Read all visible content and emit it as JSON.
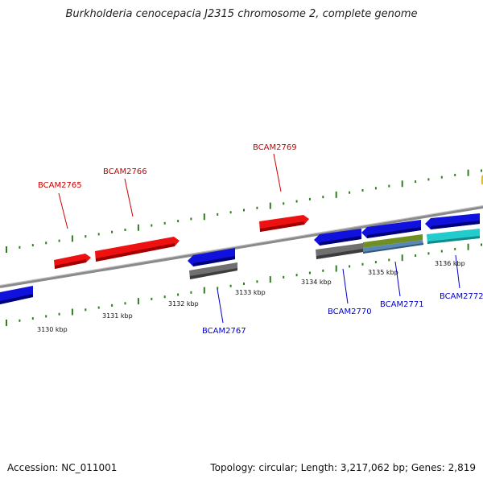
{
  "title": "Burkholderia cenocepacia J2315 chromosome 2, complete genome",
  "accession_text": "Accession: NC_011001",
  "summary_text": "Topology: circular; Length: 3,217,062 bp; Genes: 2,819",
  "tick_labels": [
    "3130 kbp",
    "3131 kbp",
    "3132 kbp",
    "3133 kbp",
    "3134 kbp",
    "3135 kbp",
    "3136 kbp"
  ],
  "genes": [
    {
      "name": "BCAM2765",
      "strand": "forward",
      "color": "#cc0000"
    },
    {
      "name": "BCAM2766",
      "strand": "forward",
      "color": "#cc0000"
    },
    {
      "name": "BCAM2767",
      "strand": "reverse",
      "color": "#0000cc"
    },
    {
      "name": "BCAM2769",
      "strand": "forward",
      "color": "#cc0000"
    },
    {
      "name": "BCAM2770",
      "strand": "reverse",
      "color": "#0000cc"
    },
    {
      "name": "BCAM2771",
      "strand": "reverse",
      "color": "#0000cc"
    },
    {
      "name": "BCAM2772",
      "strand": "reverse",
      "color": "#0000cc"
    }
  ],
  "colors": {
    "backbone": "#8a8a8a",
    "forward_gene": "#ee1111",
    "reverse_gene": "#1111dd",
    "tick": "#2e7d1f",
    "feature_grey": "#707070",
    "feature_olive": "#6f8f23",
    "feature_steel": "#5b87b8",
    "feature_cyan": "#22cccc"
  }
}
